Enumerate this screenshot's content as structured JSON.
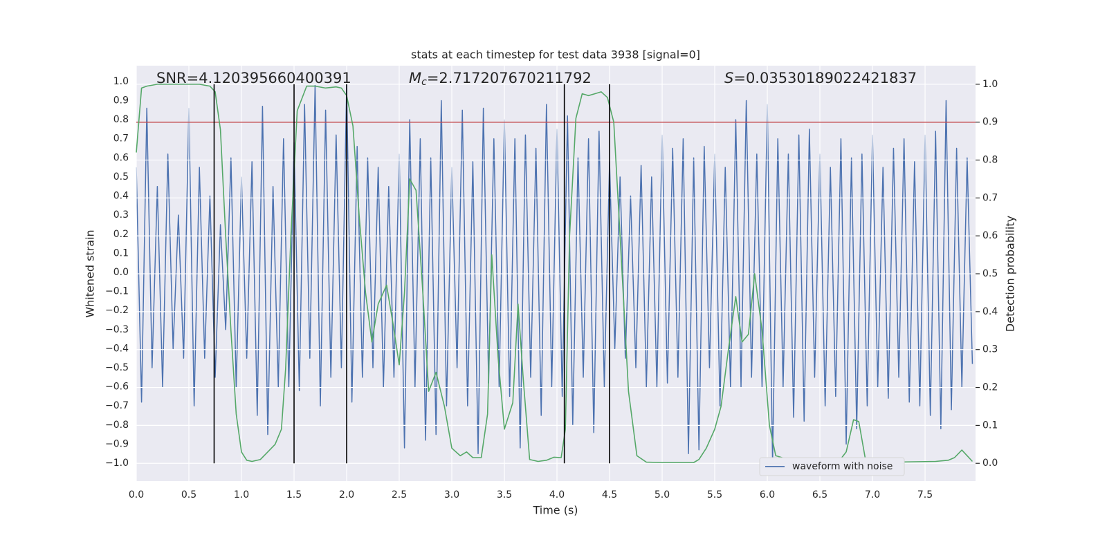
{
  "chart_data": {
    "type": "line",
    "title": "stats at each timestep for test data 3938 [signal=0]",
    "xlabel": "Time (s)",
    "ylabel": "Whitened strain",
    "y2label": "Detection probability",
    "annotations": [
      {
        "text": "SNR=4.120395660400391"
      },
      {
        "symbol": "M",
        "subscript": "c",
        "text": "=2.717207670211792"
      },
      {
        "symbol": "S",
        "text": "=0.03530189022421837"
      }
    ],
    "xlim": [
      0,
      7.98
    ],
    "ylim": [
      -1.094,
      1.083
    ],
    "y2lim": [
      -0.047,
      1.049
    ],
    "xticks": [
      {
        "value": 0,
        "label": "0.0"
      },
      0.5,
      {
        "value": 1,
        "label": "1.0"
      },
      1.5,
      {
        "value": 2,
        "label": "2.0"
      },
      2.5,
      {
        "value": 3,
        "label": "3.0"
      },
      3.5,
      {
        "value": 4,
        "label": "4.0"
      },
      4.5,
      {
        "value": 5,
        "label": "5.0"
      },
      5.5,
      {
        "value": 6,
        "label": "6.0"
      },
      6.5,
      {
        "value": 7,
        "label": "7.0"
      },
      7.5
    ],
    "yticks": [
      {
        "value": -1,
        "label": "−1.0"
      },
      {
        "value": -0.9,
        "label": "−0.9"
      },
      {
        "value": -0.8,
        "label": "−0.8"
      },
      {
        "value": -0.7,
        "label": "−0.7"
      },
      {
        "value": -0.6,
        "label": "−0.6"
      },
      {
        "value": -0.5,
        "label": "−0.5"
      },
      {
        "value": -0.4,
        "label": "−0.4"
      },
      {
        "value": -0.3,
        "label": "−0.3"
      },
      {
        "value": -0.2,
        "label": "−0.2"
      },
      {
        "value": -0.1,
        "label": "−0.1"
      },
      {
        "value": 0,
        "label": "0.0"
      },
      0.1,
      0.2,
      0.3,
      0.4,
      0.5,
      0.6,
      0.7,
      0.8,
      0.9,
      {
        "value": 1,
        "label": "1.0"
      }
    ],
    "y2ticks": [
      {
        "value": 0,
        "label": "0.0"
      },
      0.1,
      0.2,
      0.3,
      0.4,
      0.5,
      0.6,
      0.7,
      0.8,
      0.9,
      {
        "value": 1,
        "label": "1.0"
      }
    ],
    "grid": true,
    "legend": "lower right",
    "series": [
      {
        "name": "waveform with noise",
        "color": "#4c72b0",
        "x": [
          0,
          0.05,
          0.1,
          0.15,
          0.2,
          0.25,
          0.3,
          0.35,
          0.4,
          0.45,
          0.5,
          0.55,
          0.6,
          0.65,
          0.7,
          0.75,
          0.8,
          0.85,
          0.9,
          0.95,
          1,
          1.05,
          1.1,
          1.15,
          1.2,
          1.25,
          1.3,
          1.35,
          1.4,
          1.45,
          1.5,
          1.55,
          1.6,
          1.65,
          1.7,
          1.75,
          1.8,
          1.85,
          1.9,
          1.95,
          2,
          2.05,
          2.1,
          2.15,
          2.2,
          2.25,
          2.3,
          2.35,
          2.4,
          2.45,
          2.5,
          2.55,
          2.6,
          2.65,
          2.7,
          2.75,
          2.8,
          2.85,
          2.9,
          2.95,
          3,
          3.05,
          3.1,
          3.15,
          3.2,
          3.25,
          3.3,
          3.35,
          3.4,
          3.45,
          3.5,
          3.55,
          3.6,
          3.65,
          3.7,
          3.75,
          3.8,
          3.85,
          3.9,
          3.95,
          4,
          4.05,
          4.1,
          4.15,
          4.2,
          4.25,
          4.3,
          4.35,
          4.4,
          4.45,
          4.5,
          4.55,
          4.6,
          4.65,
          4.7,
          4.75,
          4.8,
          4.85,
          4.9,
          4.95,
          5,
          5.05,
          5.1,
          5.15,
          5.2,
          5.25,
          5.3,
          5.35,
          5.4,
          5.45,
          5.5,
          5.55,
          5.6,
          5.65,
          5.7,
          5.75,
          5.8,
          5.85,
          5.9,
          5.95,
          6,
          6.05,
          6.1,
          6.15,
          6.2,
          6.25,
          6.3,
          6.35,
          6.4,
          6.45,
          6.5,
          6.55,
          6.6,
          6.65,
          6.7,
          6.75,
          6.8,
          6.85,
          6.9,
          6.95,
          7,
          7.05,
          7.1,
          7.15,
          7.2,
          7.25,
          7.3,
          7.35,
          7.4,
          7.45,
          7.5,
          7.55,
          7.6,
          7.65,
          7.7,
          7.75,
          7.8,
          7.85,
          7.9,
          7.95
        ],
        "values": [
          0.55,
          -0.68,
          0.86,
          -0.5,
          0.45,
          -0.6,
          0.62,
          -0.4,
          0.3,
          -0.45,
          0.86,
          -0.7,
          0.55,
          -0.45,
          0.4,
          -0.55,
          0.25,
          -0.3,
          0.6,
          -0.6,
          0.5,
          -0.45,
          0.58,
          -0.75,
          0.87,
          -0.85,
          0.45,
          -0.6,
          0.7,
          -0.6,
          0.68,
          -0.62,
          0.88,
          -0.45,
          0.98,
          -0.7,
          0.85,
          -0.55,
          0.72,
          -0.5,
          0.98,
          -0.68,
          0.66,
          -0.55,
          0.6,
          -0.5,
          0.55,
          -0.6,
          0.45,
          -0.55,
          0.62,
          -0.92,
          0.8,
          -0.6,
          0.7,
          -0.88,
          0.6,
          -0.85,
          0.9,
          -0.7,
          0.55,
          -0.5,
          0.85,
          -0.7,
          0.58,
          -0.95,
          0.86,
          -0.58,
          0.7,
          -0.6,
          0.8,
          -0.65,
          0.7,
          -0.92,
          0.72,
          -0.55,
          0.65,
          -0.75,
          0.88,
          -0.6,
          0.75,
          -0.65,
          0.82,
          -0.8,
          0.6,
          -0.55,
          0.7,
          -0.84,
          0.74,
          -0.6,
          0.58,
          -0.4,
          0.5,
          -0.45,
          0.4,
          -0.5,
          0.56,
          -0.6,
          0.5,
          -0.6,
          0.72,
          -0.58,
          0.65,
          -0.55,
          0.7,
          -0.95,
          0.6,
          -0.93,
          0.66,
          -0.5,
          0.62,
          -0.7,
          0.55,
          -0.6,
          0.8,
          -0.6,
          0.9,
          -0.55,
          0.62,
          -0.6,
          0.88,
          -1.0,
          0.7,
          -0.6,
          0.62,
          -0.76,
          0.72,
          -0.78,
          0.75,
          -0.55,
          0.62,
          -0.7,
          0.55,
          -0.65,
          0.7,
          -0.9,
          0.6,
          -0.82,
          0.62,
          -0.7,
          0.72,
          -0.6,
          0.55,
          -0.66,
          0.65,
          -0.55,
          0.7,
          -0.68,
          0.58,
          -0.7,
          0.72,
          -0.75,
          0.74,
          -0.82,
          0.9,
          -0.72,
          0.65,
          -0.6,
          0.6,
          -0.48
        ]
      },
      {
        "color": "#55a868",
        "axis": "y2",
        "x": [
          0,
          0.05,
          0.1,
          0.2,
          0.4,
          0.6,
          0.7,
          0.75,
          0.8,
          0.85,
          0.9,
          0.95,
          1.0,
          1.05,
          1.1,
          1.18,
          1.25,
          1.32,
          1.38,
          1.42,
          1.47,
          1.53,
          1.62,
          1.7,
          1.8,
          1.9,
          1.95,
          2.0,
          2.06,
          2.12,
          2.18,
          2.24,
          2.3,
          2.38,
          2.44,
          2.5,
          2.55,
          2.6,
          2.66,
          2.72,
          2.78,
          2.85,
          2.93,
          3.0,
          3.08,
          3.14,
          3.2,
          3.28,
          3.34,
          3.38,
          3.44,
          3.5,
          3.58,
          3.63,
          3.68,
          3.74,
          3.82,
          3.9,
          3.97,
          4.04,
          4.08,
          4.12,
          4.18,
          4.24,
          4.3,
          4.36,
          4.42,
          4.48,
          4.54,
          4.6,
          4.68,
          4.76,
          4.85,
          5.0,
          5.3,
          5.35,
          5.42,
          5.5,
          5.56,
          5.63,
          5.7,
          5.76,
          5.82,
          5.88,
          5.95,
          6.02,
          6.08,
          6.2,
          6.32,
          6.42,
          6.48,
          6.55,
          6.62,
          6.7,
          6.75,
          6.82,
          6.87,
          6.93,
          7.0,
          7.1,
          7.2,
          7.6,
          7.72,
          7.78,
          7.85,
          7.95
        ],
        "values": [
          0.82,
          0.99,
          0.995,
          1.0,
          1.0,
          1.0,
          0.995,
          0.98,
          0.88,
          0.6,
          0.35,
          0.13,
          0.03,
          0.008,
          0.005,
          0.01,
          0.03,
          0.05,
          0.09,
          0.25,
          0.6,
          0.93,
          0.995,
          0.995,
          0.99,
          0.993,
          0.99,
          0.97,
          0.89,
          0.65,
          0.45,
          0.32,
          0.42,
          0.47,
          0.37,
          0.26,
          0.45,
          0.75,
          0.72,
          0.47,
          0.19,
          0.24,
          0.15,
          0.04,
          0.02,
          0.03,
          0.015,
          0.015,
          0.13,
          0.55,
          0.28,
          0.09,
          0.16,
          0.42,
          0.22,
          0.01,
          0.005,
          0.008,
          0.016,
          0.015,
          0.09,
          0.6,
          0.91,
          0.975,
          0.97,
          0.975,
          0.98,
          0.965,
          0.9,
          0.6,
          0.19,
          0.02,
          0.003,
          0.002,
          0.002,
          0.01,
          0.04,
          0.09,
          0.15,
          0.3,
          0.44,
          0.32,
          0.34,
          0.5,
          0.35,
          0.1,
          0.02,
          0.01,
          0.005,
          0.006,
          0.012,
          0.01,
          0.005,
          0.012,
          0.03,
          0.115,
          0.11,
          0.015,
          0.005,
          0.006,
          0.003,
          0.005,
          0.008,
          0.015,
          0.035,
          0.005
        ]
      }
    ],
    "hline": {
      "y": 0.9,
      "axis": "y2",
      "color": "#c44e52"
    },
    "vlines": {
      "x": [
        0.74,
        1.5,
        2.0,
        4.07,
        4.5
      ],
      "ymin": 0,
      "ymax": 1,
      "axis": "y2",
      "color": "#000000"
    }
  }
}
